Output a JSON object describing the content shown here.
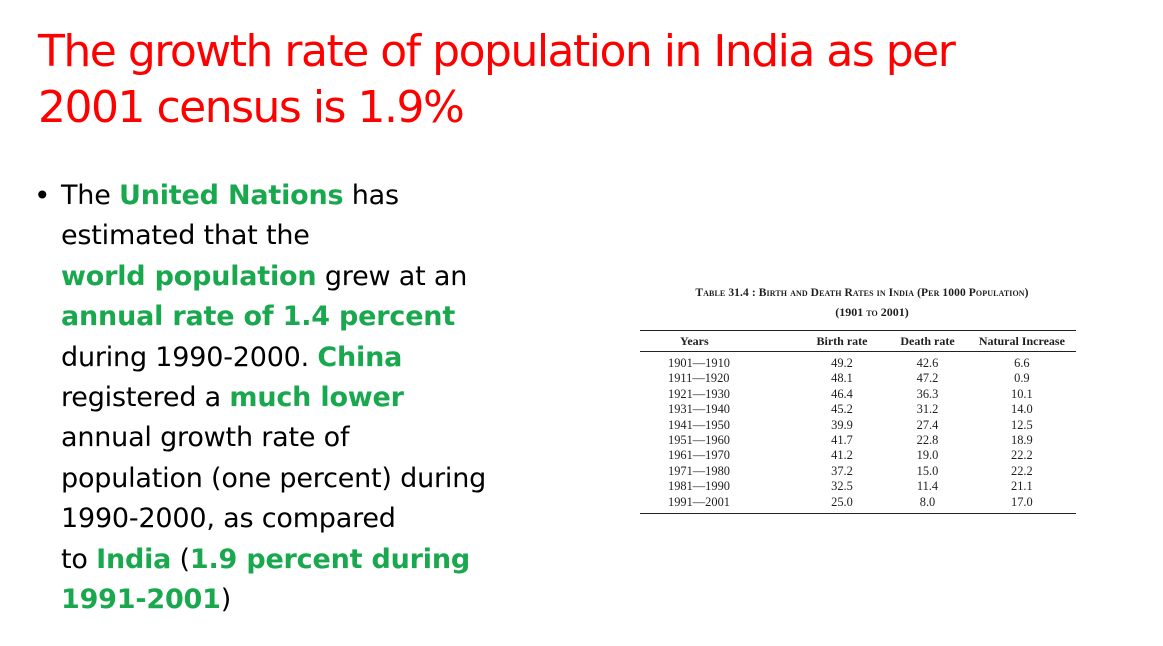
{
  "slide": {
    "title_lines": [
      "The growth rate of population in India as per",
      "2001 census is 1.9%"
    ]
  },
  "bullet": {
    "symbol": "•",
    "lines": [
      [
        {
          "t": "The ",
          "h": false
        },
        {
          "t": "United Nations",
          "h": true
        },
        {
          "t": " has",
          "h": false
        }
      ],
      [
        {
          "t": "estimated that the",
          "h": false
        }
      ],
      [
        {
          "t": "world population",
          "h": true
        },
        {
          "t": " grew at an",
          "h": false
        }
      ],
      [
        {
          "t": "annual rate of 1.4 percent",
          "h": true
        }
      ],
      [
        {
          "t": "during 1990-2000. ",
          "h": false
        },
        {
          "t": "China",
          "h": true
        }
      ],
      [
        {
          "t": "registered a ",
          "h": false
        },
        {
          "t": "much lower",
          "h": true
        }
      ],
      [
        {
          "t": "annual growth rate of",
          "h": false
        }
      ],
      [
        {
          "t": "population (one percent) during",
          "h": false
        }
      ],
      [
        {
          "t": "1990-2000, as compared",
          "h": false
        }
      ],
      [
        {
          "t": "to ",
          "h": false
        },
        {
          "t": "India",
          "h": true
        },
        {
          "t": " (",
          "h": false
        },
        {
          "t": "1.9 percent during",
          "h": true
        }
      ],
      [
        {
          "t": "1991-2001",
          "h": true
        },
        {
          "t": ")",
          "h": false
        }
      ]
    ]
  },
  "table": {
    "caption_prefix": "Table 31.4 :",
    "caption_text": "Birth and Death Rates in India (Per 1000 Population)",
    "subcaption": "(1901 to 2001)",
    "headers": {
      "years": "Years",
      "birth": "Birth rate",
      "death": "Death rate",
      "natural": "Natural Increase"
    },
    "rows": [
      {
        "years": "1901—1910",
        "birth": "49.2",
        "death": "42.6",
        "natural": "6.6"
      },
      {
        "years": "1911—1920",
        "birth": "48.1",
        "death": "47.2",
        "natural": "0.9"
      },
      {
        "years": "1921—1930",
        "birth": "46.4",
        "death": "36.3",
        "natural": "10.1"
      },
      {
        "years": "1931—1940",
        "birth": "45.2",
        "death": "31.2",
        "natural": "14.0"
      },
      {
        "years": "1941—1950",
        "birth": "39.9",
        "death": "27.4",
        "natural": "12.5"
      },
      {
        "years": "1951—1960",
        "birth": "41.7",
        "death": "22.8",
        "natural": "18.9"
      },
      {
        "years": "1961—1970",
        "birth": "41.2",
        "death": "19.0",
        "natural": "22.2"
      },
      {
        "years": "1971—1980",
        "birth": "37.2",
        "death": "15.0",
        "natural": "22.2"
      },
      {
        "years": "1981—1990",
        "birth": "32.5",
        "death": "11.4",
        "natural": "21.1"
      },
      {
        "years": "1991—2001",
        "birth": "25.0",
        "death": "8.0",
        "natural": "17.0"
      }
    ]
  },
  "colors": {
    "title": "#ff0000",
    "highlight": "#1aa84f",
    "text": "#000000"
  }
}
